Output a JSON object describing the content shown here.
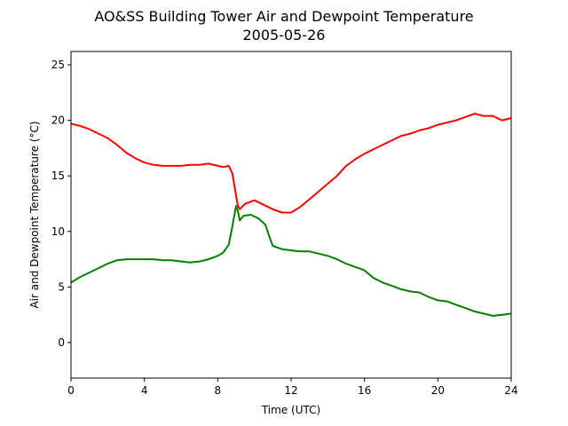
{
  "chart_data": {
    "type": "line",
    "title": "AO&SS Building Tower Air and Dewpoint Temperature",
    "subtitle": "2005-05-26",
    "xlabel": "Time (UTC)",
    "ylabel": "Air and Dewpoint Temperature (°C)",
    "xlim": [
      0,
      24
    ],
    "ylim": [
      -3.2,
      26.2
    ],
    "xticks": [
      0,
      4,
      8,
      12,
      16,
      20,
      24
    ],
    "yticks": [
      0,
      5,
      10,
      15,
      20,
      25
    ],
    "grid": false,
    "legend": "none",
    "series": [
      {
        "color": "#ff0000",
        "x": [
          0,
          0.5,
          1,
          1.5,
          2,
          2.5,
          3,
          3.5,
          4,
          4.5,
          5,
          5.5,
          6,
          6.5,
          7,
          7.5,
          8,
          8.3,
          8.6,
          8.8,
          9.0,
          9.1,
          9.2,
          9.5,
          10,
          10.5,
          11,
          11.5,
          12,
          12.5,
          13,
          13.5,
          14,
          14.5,
          15,
          15.5,
          16,
          16.5,
          17,
          17.5,
          18,
          18.5,
          19,
          19.5,
          20,
          20.5,
          21,
          21.5,
          22,
          22.5,
          23,
          23.5,
          24
        ],
        "y": [
          19.7,
          19.5,
          19.2,
          18.8,
          18.4,
          17.8,
          17.1,
          16.6,
          16.2,
          16.0,
          15.9,
          15.9,
          15.9,
          16.0,
          16.0,
          16.1,
          15.9,
          15.8,
          15.9,
          15.2,
          13.2,
          12.3,
          12.0,
          12.5,
          12.8,
          12.4,
          12.0,
          11.7,
          11.7,
          12.2,
          12.9,
          13.6,
          14.3,
          15.0,
          15.9,
          16.5,
          17.0,
          17.4,
          17.8,
          18.2,
          18.6,
          18.8,
          19.1,
          19.3,
          19.6,
          19.8,
          20.0,
          20.3,
          20.6,
          20.4,
          20.4,
          20.0,
          20.2
        ]
      },
      {
        "color": "#008000",
        "x": [
          0,
          0.5,
          1,
          1.5,
          2,
          2.5,
          3,
          3.5,
          4,
          4.5,
          5,
          5.5,
          6,
          6.5,
          7,
          7.5,
          8,
          8.3,
          8.6,
          8.8,
          9.0,
          9.1,
          9.2,
          9.4,
          9.8,
          10.2,
          10.6,
          10.8,
          11.0,
          11.5,
          12,
          12.5,
          13,
          13.5,
          14,
          14.5,
          15,
          15.5,
          16,
          16.5,
          17,
          17.5,
          18,
          18.5,
          19,
          19.5,
          20,
          20.5,
          21,
          21.5,
          22,
          22.5,
          23,
          23.5,
          24
        ],
        "y": [
          5.4,
          5.9,
          6.3,
          6.7,
          7.1,
          7.4,
          7.5,
          7.5,
          7.5,
          7.5,
          7.4,
          7.4,
          7.3,
          7.2,
          7.3,
          7.5,
          7.8,
          8.1,
          8.8,
          10.5,
          12.3,
          11.8,
          11.0,
          11.4,
          11.5,
          11.2,
          10.6,
          9.6,
          8.7,
          8.4,
          8.3,
          8.2,
          8.2,
          8.0,
          7.8,
          7.5,
          7.1,
          6.8,
          6.5,
          5.8,
          5.4,
          5.1,
          4.8,
          4.6,
          4.5,
          4.1,
          3.8,
          3.7,
          3.4,
          3.1,
          2.8,
          2.6,
          2.4,
          2.5,
          2.6
        ]
      }
    ]
  }
}
